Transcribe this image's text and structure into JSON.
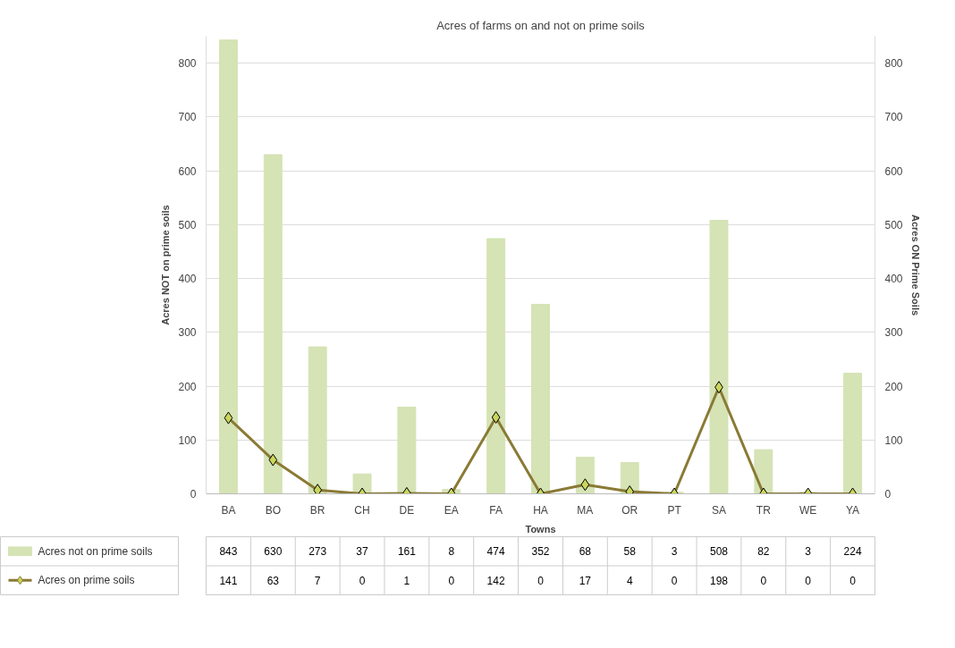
{
  "chart_data": {
    "type": "bar",
    "title": "Acres of farms on and not on prime soils",
    "xlabel": "Towns",
    "ylabel": "Acres NOT on prime soils",
    "y2label": "Acres ON Prime Soils",
    "categories": [
      "BA",
      "BO",
      "BR",
      "CH",
      "DE",
      "EA",
      "FA",
      "HA",
      "MA",
      "OR",
      "PT",
      "SA",
      "TR",
      "WE",
      "YA"
    ],
    "series": [
      {
        "name": "Acres not on prime soils",
        "color": "#d5e3b5",
        "values": [
          843,
          630,
          273,
          37,
          161,
          8,
          474,
          352,
          68,
          58,
          3,
          508,
          82,
          3,
          224
        ]
      },
      {
        "name": "Acres on prime soils",
        "type": "line",
        "color": "#8a7a35",
        "marker": "diamond",
        "values": [
          141,
          63,
          7,
          0,
          1,
          0,
          142,
          0,
          17,
          4,
          0,
          198,
          0,
          0,
          0
        ]
      }
    ],
    "ylim": [
      0,
      850
    ],
    "yticks": [
      0,
      100,
      200,
      300,
      400,
      500,
      600,
      700,
      800
    ],
    "y2lim": [
      0,
      850
    ],
    "y2ticks": [
      0,
      100,
      200,
      300,
      400,
      500,
      600,
      700,
      800
    ],
    "grid": "y",
    "legend": "bottom",
    "data_labels": true
  }
}
